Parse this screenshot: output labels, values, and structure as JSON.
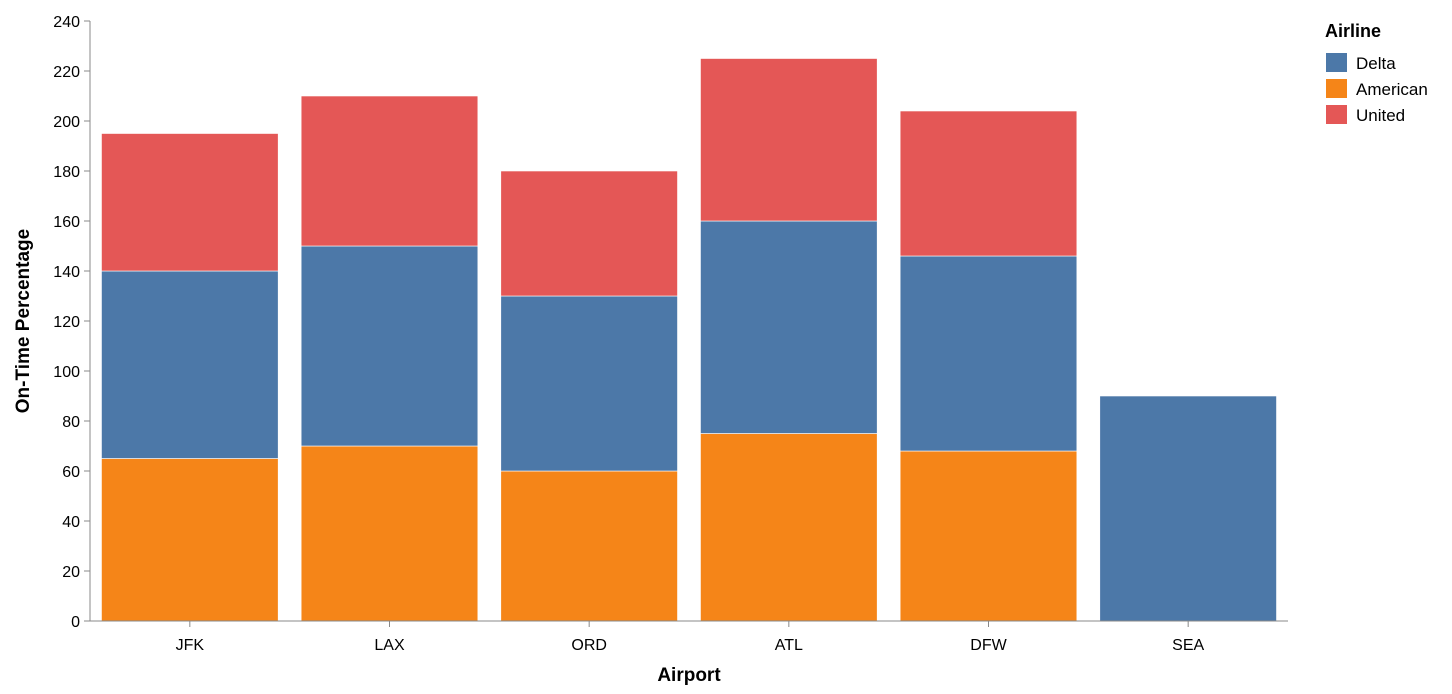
{
  "chart_data": {
    "type": "bar",
    "stacked": true,
    "categories": [
      "JFK",
      "LAX",
      "ORD",
      "ATL",
      "DFW",
      "SEA"
    ],
    "series": [
      {
        "name": "American",
        "color": "#f58518",
        "values": [
          65,
          70,
          60,
          75,
          68,
          0
        ]
      },
      {
        "name": "Delta",
        "color": "#4c78a8",
        "values": [
          75,
          80,
          70,
          85,
          78,
          90
        ]
      },
      {
        "name": "United",
        "color": "#e45756",
        "values": [
          55,
          60,
          50,
          65,
          58,
          0
        ]
      }
    ],
    "xlabel": "Airport",
    "ylabel": "On-Time Percentage",
    "ylim": [
      0,
      240
    ],
    "yticks": [
      0,
      20,
      40,
      60,
      80,
      100,
      120,
      140,
      160,
      180,
      200,
      220,
      240
    ],
    "grid": false,
    "legend": {
      "title": "Airline",
      "position": "top-right",
      "entries": [
        {
          "name": "Delta",
          "color": "#4c78a8"
        },
        {
          "name": "American",
          "color": "#f58518"
        },
        {
          "name": "United",
          "color": "#e45756"
        }
      ]
    }
  }
}
